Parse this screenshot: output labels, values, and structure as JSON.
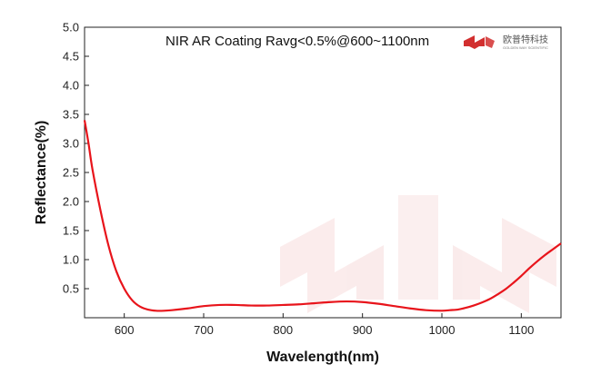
{
  "chart_data": {
    "type": "line",
    "title": "NIR AR Coating Ravg<0.5%@600~1100nm",
    "xlabel": "Wavelength(nm)",
    "ylabel": "Reflectance(%)",
    "xlim": [
      550,
      1150
    ],
    "ylim": [
      0,
      5.0
    ],
    "x_ticks": [
      "600",
      "700",
      "800",
      "900",
      "1000",
      "1100"
    ],
    "y_ticks": [
      "0.5",
      "1.0",
      "1.5",
      "2.0",
      "2.5",
      "3.0",
      "3.5",
      "4.0",
      "4.5",
      "5.0"
    ],
    "grid": false,
    "line_color": "#e8141b",
    "series": [
      {
        "x": [
          550,
          555,
          560,
          570,
          580,
          590,
          600,
          610,
          620,
          630,
          640,
          650,
          660,
          680,
          700,
          720,
          740,
          760,
          780,
          800,
          820,
          840,
          860,
          880,
          900,
          920,
          940,
          960,
          980,
          1000,
          1010,
          1020,
          1030,
          1040,
          1050,
          1060,
          1070,
          1080,
          1090,
          1100,
          1110,
          1120,
          1130,
          1140,
          1150
        ],
        "values": [
          3.4,
          3.0,
          2.55,
          1.85,
          1.25,
          0.8,
          0.5,
          0.3,
          0.19,
          0.14,
          0.12,
          0.12,
          0.13,
          0.16,
          0.2,
          0.22,
          0.22,
          0.21,
          0.21,
          0.22,
          0.23,
          0.25,
          0.27,
          0.28,
          0.27,
          0.24,
          0.2,
          0.16,
          0.13,
          0.12,
          0.13,
          0.14,
          0.17,
          0.21,
          0.26,
          0.32,
          0.4,
          0.49,
          0.6,
          0.72,
          0.85,
          0.97,
          1.08,
          1.18,
          1.28
        ]
      }
    ]
  },
  "brand": {
    "name_cn": "欧普特科技",
    "name_en": "GOLDEN WAY SCIENTIFIC",
    "color": "#d22f2f"
  }
}
